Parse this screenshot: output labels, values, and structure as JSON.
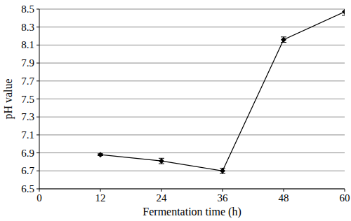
{
  "chart_data": {
    "type": "line",
    "x_label": "Fermentation time (h)",
    "y_label": "pH value",
    "x": [
      12,
      24,
      36,
      48,
      60
    ],
    "values": [
      6.88,
      6.81,
      6.7,
      8.16,
      8.47
    ],
    "errors": [
      0.01,
      0.03,
      0.03,
      0.03,
      0.04
    ],
    "color": "#000000",
    "marker": "diamond",
    "xlim": [
      0,
      60
    ],
    "xticks": [
      0,
      12,
      24,
      36,
      48,
      60
    ],
    "ylim": [
      6.5,
      8.5
    ],
    "yticks": [
      6.5,
      6.7,
      6.9,
      7.1,
      7.3,
      7.5,
      7.7,
      7.9,
      8.1,
      8.3,
      8.5
    ],
    "grid": true
  }
}
